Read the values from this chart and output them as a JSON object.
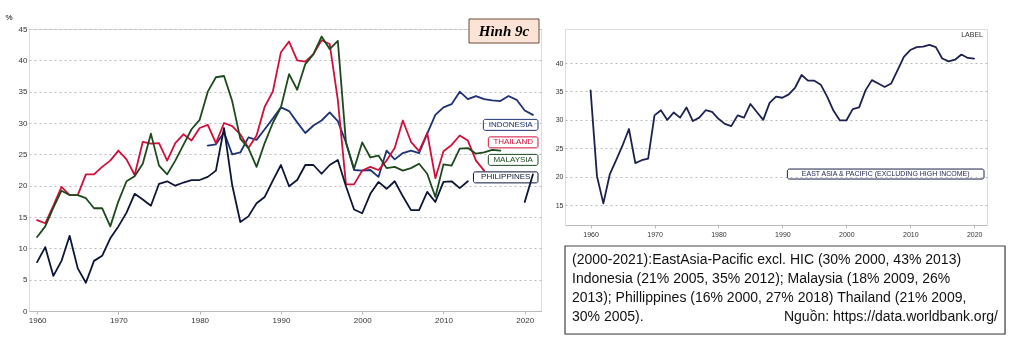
{
  "chart_data": [
    {
      "type": "line",
      "title": "Hình 9c",
      "ylabel": "%",
      "x": [
        1960,
        1961,
        1962,
        1963,
        1964,
        1965,
        1966,
        1967,
        1968,
        1969,
        1970,
        1971,
        1972,
        1973,
        1974,
        1975,
        1976,
        1977,
        1978,
        1979,
        1980,
        1981,
        1982,
        1983,
        1984,
        1985,
        1986,
        1987,
        1988,
        1989,
        1990,
        1991,
        1992,
        1993,
        1994,
        1995,
        1996,
        1997,
        1998,
        1999,
        2000,
        2001,
        2002,
        2003,
        2004,
        2005,
        2006,
        2007,
        2008,
        2009,
        2010,
        2011,
        2012,
        2013,
        2014,
        2015,
        2016,
        2017,
        2018,
        2019,
        2020,
        2021
      ],
      "xlim": [
        1959,
        2022
      ],
      "ylim": [
        0,
        45
      ],
      "xticks": [
        1960,
        1970,
        1980,
        1990,
        2000,
        2010,
        2020
      ],
      "yticks": [
        0,
        5,
        10,
        15,
        20,
        25,
        30,
        35,
        40,
        45
      ],
      "grid": "y",
      "legend": "right",
      "series": [
        {
          "name": "INDONESIA",
          "color": "#1f3275",
          "values": [
            null,
            null,
            null,
            null,
            null,
            null,
            null,
            null,
            null,
            null,
            null,
            null,
            null,
            null,
            null,
            null,
            null,
            null,
            null,
            null,
            null,
            26.4,
            26.6,
            28.5,
            25,
            25.3,
            27.7,
            27.3,
            29,
            30.7,
            32.5,
            31.9,
            30.1,
            28.4,
            29.6,
            30.4,
            31.7,
            30.3,
            26.9,
            22.5,
            22.4,
            22.5,
            21.4,
            25.6,
            24.2,
            25.2,
            25.6,
            25.2,
            28.3,
            31.3,
            32.5,
            33,
            35,
            33.8,
            34.3,
            33.8,
            33.6,
            33.5,
            34.3,
            33.7,
            32,
            31.3
          ]
        },
        {
          "name": "THAILAND",
          "color": "#d0103a",
          "values": [
            14.5,
            14,
            16.8,
            19.8,
            18.5,
            18.5,
            21.8,
            21.8,
            23,
            24,
            25.6,
            24.2,
            21.7,
            27,
            26.7,
            26.8,
            24,
            26.8,
            28.2,
            27.2,
            29.2,
            29.7,
            26.8,
            30,
            29.5,
            28.2,
            26,
            28,
            32.6,
            35,
            41.3,
            43,
            40,
            39.8,
            41,
            43.2,
            42.6,
            33.7,
            20.2,
            20.2,
            22.4,
            23,
            22.5,
            24,
            26,
            30.4,
            27,
            25.5,
            28.4,
            21.2,
            25.5,
            26.5,
            28,
            27.2,
            24,
            22.4,
            null,
            null,
            null,
            null,
            null,
            null
          ]
        },
        {
          "name": "MALAYSIA",
          "color": "#1d4a1d",
          "values": [
            11.8,
            13.5,
            16.5,
            19.2,
            18.5,
            18.5,
            18,
            16.4,
            16.4,
            13.5,
            17.5,
            20.7,
            21.5,
            23.5,
            28.3,
            23.2,
            21.8,
            24,
            26.5,
            29,
            30.5,
            35,
            37.3,
            37.5,
            33.5,
            27.5,
            26,
            23,
            26.8,
            30,
            32.5,
            37.8,
            35.3,
            39.4,
            41,
            43.8,
            41.8,
            43.1,
            26.9,
            22.7,
            26.9,
            24.5,
            24.8,
            22.8,
            23,
            22.4,
            22.8,
            23.5,
            21.9,
            18.2,
            23.4,
            23.2,
            25.9,
            26,
            25.1,
            25.3,
            25.7,
            25.6,
            null,
            null,
            null,
            null
          ]
        },
        {
          "name": "PHILIPPINES",
          "color": "#0e1638",
          "values": [
            7.8,
            10.2,
            5.6,
            8,
            12,
            6.8,
            4.5,
            8,
            8.8,
            11.6,
            13.5,
            15.7,
            18.7,
            17.8,
            16.8,
            20.3,
            20.7,
            20,
            20.5,
            20.9,
            20.9,
            21.4,
            22.4,
            29.2,
            20.1,
            14.2,
            15.1,
            17.2,
            18.2,
            20.8,
            23.3,
            19.9,
            20.9,
            23.3,
            23.3,
            21.9,
            23.3,
            24.1,
            19.9,
            16.2,
            15.6,
            18.7,
            20.6,
            19.5,
            20.7,
            18.3,
            16.1,
            16.1,
            19,
            17.4,
            20.6,
            20.7,
            19.6,
            20.7,
            null,
            null,
            null,
            null,
            null,
            null,
            17.4,
            21.8
          ]
        }
      ]
    },
    {
      "type": "line",
      "x": [
        1960,
        1961,
        1962,
        1963,
        1964,
        1965,
        1966,
        1967,
        1968,
        1969,
        1970,
        1971,
        1972,
        1973,
        1974,
        1975,
        1976,
        1977,
        1978,
        1979,
        1980,
        1981,
        1982,
        1983,
        1984,
        1985,
        1986,
        1987,
        1988,
        1989,
        1990,
        1991,
        1992,
        1993,
        1994,
        1995,
        1996,
        1997,
        1998,
        1999,
        2000,
        2001,
        2002,
        2003,
        2004,
        2005,
        2006,
        2007,
        2008,
        2009,
        2010,
        2011,
        2012,
        2013,
        2014,
        2015,
        2016,
        2017,
        2018,
        2019,
        2020
      ],
      "xlim": [
        1956,
        2022
      ],
      "ylim": [
        11.5,
        46
      ],
      "xticks": [
        1960,
        1970,
        1980,
        1990,
        2000,
        2010,
        2020
      ],
      "yticks": [
        15,
        20,
        25,
        30,
        35,
        40
      ],
      "grid": "y",
      "legend": "bottom right",
      "annotations": [
        "LABEL"
      ],
      "series": [
        {
          "name": "EAST ASIA & PACIFIC (EXCLUDING HIGH INCOME)",
          "color": "#1c2150",
          "values": [
            35.2,
            20.1,
            15.3,
            20.4,
            22.9,
            25.5,
            28.4,
            22.4,
            22.9,
            23.2,
            30.8,
            31.7,
            30,
            31.3,
            30.4,
            32.2,
            29.8,
            30.4,
            31.7,
            31.4,
            30.2,
            29.3,
            28.9,
            30.8,
            30.4,
            32.8,
            31.4,
            30,
            33,
            34.1,
            33.9,
            34.5,
            35.7,
            37.9,
            36.9,
            36.9,
            36.2,
            34.1,
            31.6,
            29.9,
            29.9,
            31.9,
            32.2,
            35.2,
            37,
            36.4,
            35.8,
            36.4,
            38.7,
            41.1,
            42.3,
            42.8,
            42.9,
            43.2,
            42.8,
            40.8,
            40.3,
            40.6,
            41.5,
            40.9,
            40.8
          ]
        }
      ]
    },
    {
      "type": "other",
      "annotations": [
        "(2000-2021):EastAsia-Pacific excl. HIC (30% 2000, 43% 2013)",
        "Indonesia (21% 2005, 35% 2012); Malaysia (18% 2009, 26%",
        "2013); Phillippines (16% 2000, 27% 2018) Thailand (21% 2009,",
        "30% 2005).",
        "Nguồn: https://data.worldbank.org/"
      ]
    }
  ]
}
